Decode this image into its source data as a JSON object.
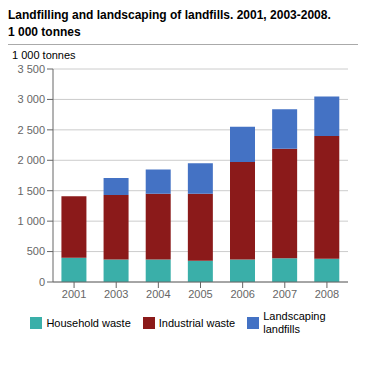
{
  "chart_data": {
    "type": "bar",
    "stacked": true,
    "title": "Landfilling and landscaping of landfills. 2001, 2003-2008.",
    "subtitle": "1 000 tonnes",
    "y_label": "1 000 tonnes",
    "categories": [
      "2001",
      "2003",
      "2004",
      "2005",
      "2006",
      "2007",
      "2008"
    ],
    "series": [
      {
        "name": "Household waste",
        "color": "#3aafa9",
        "values": [
          400,
          370,
          370,
          350,
          370,
          390,
          380
        ]
      },
      {
        "name": "Industrial waste",
        "color": "#8b1a1a",
        "values": [
          1010,
          1060,
          1080,
          1100,
          1600,
          1800,
          2020
        ]
      },
      {
        "name": "Landscaping\nlandfills",
        "color": "#4472c4",
        "values": [
          0,
          280,
          400,
          500,
          580,
          650,
          650
        ]
      }
    ],
    "ylim": [
      0,
      3500
    ],
    "yticks": [
      0,
      500,
      {
        "value": 1000,
        "label": "1 000"
      },
      {
        "value": 1500,
        "label": "1 500"
      },
      {
        "value": 2000,
        "label": "2 000"
      },
      {
        "value": 2500,
        "label": "2 500"
      },
      {
        "value": 3000,
        "label": "3 000"
      },
      {
        "value": 3500,
        "label": "3 500"
      }
    ],
    "grid": true,
    "legend": "bottom"
  }
}
